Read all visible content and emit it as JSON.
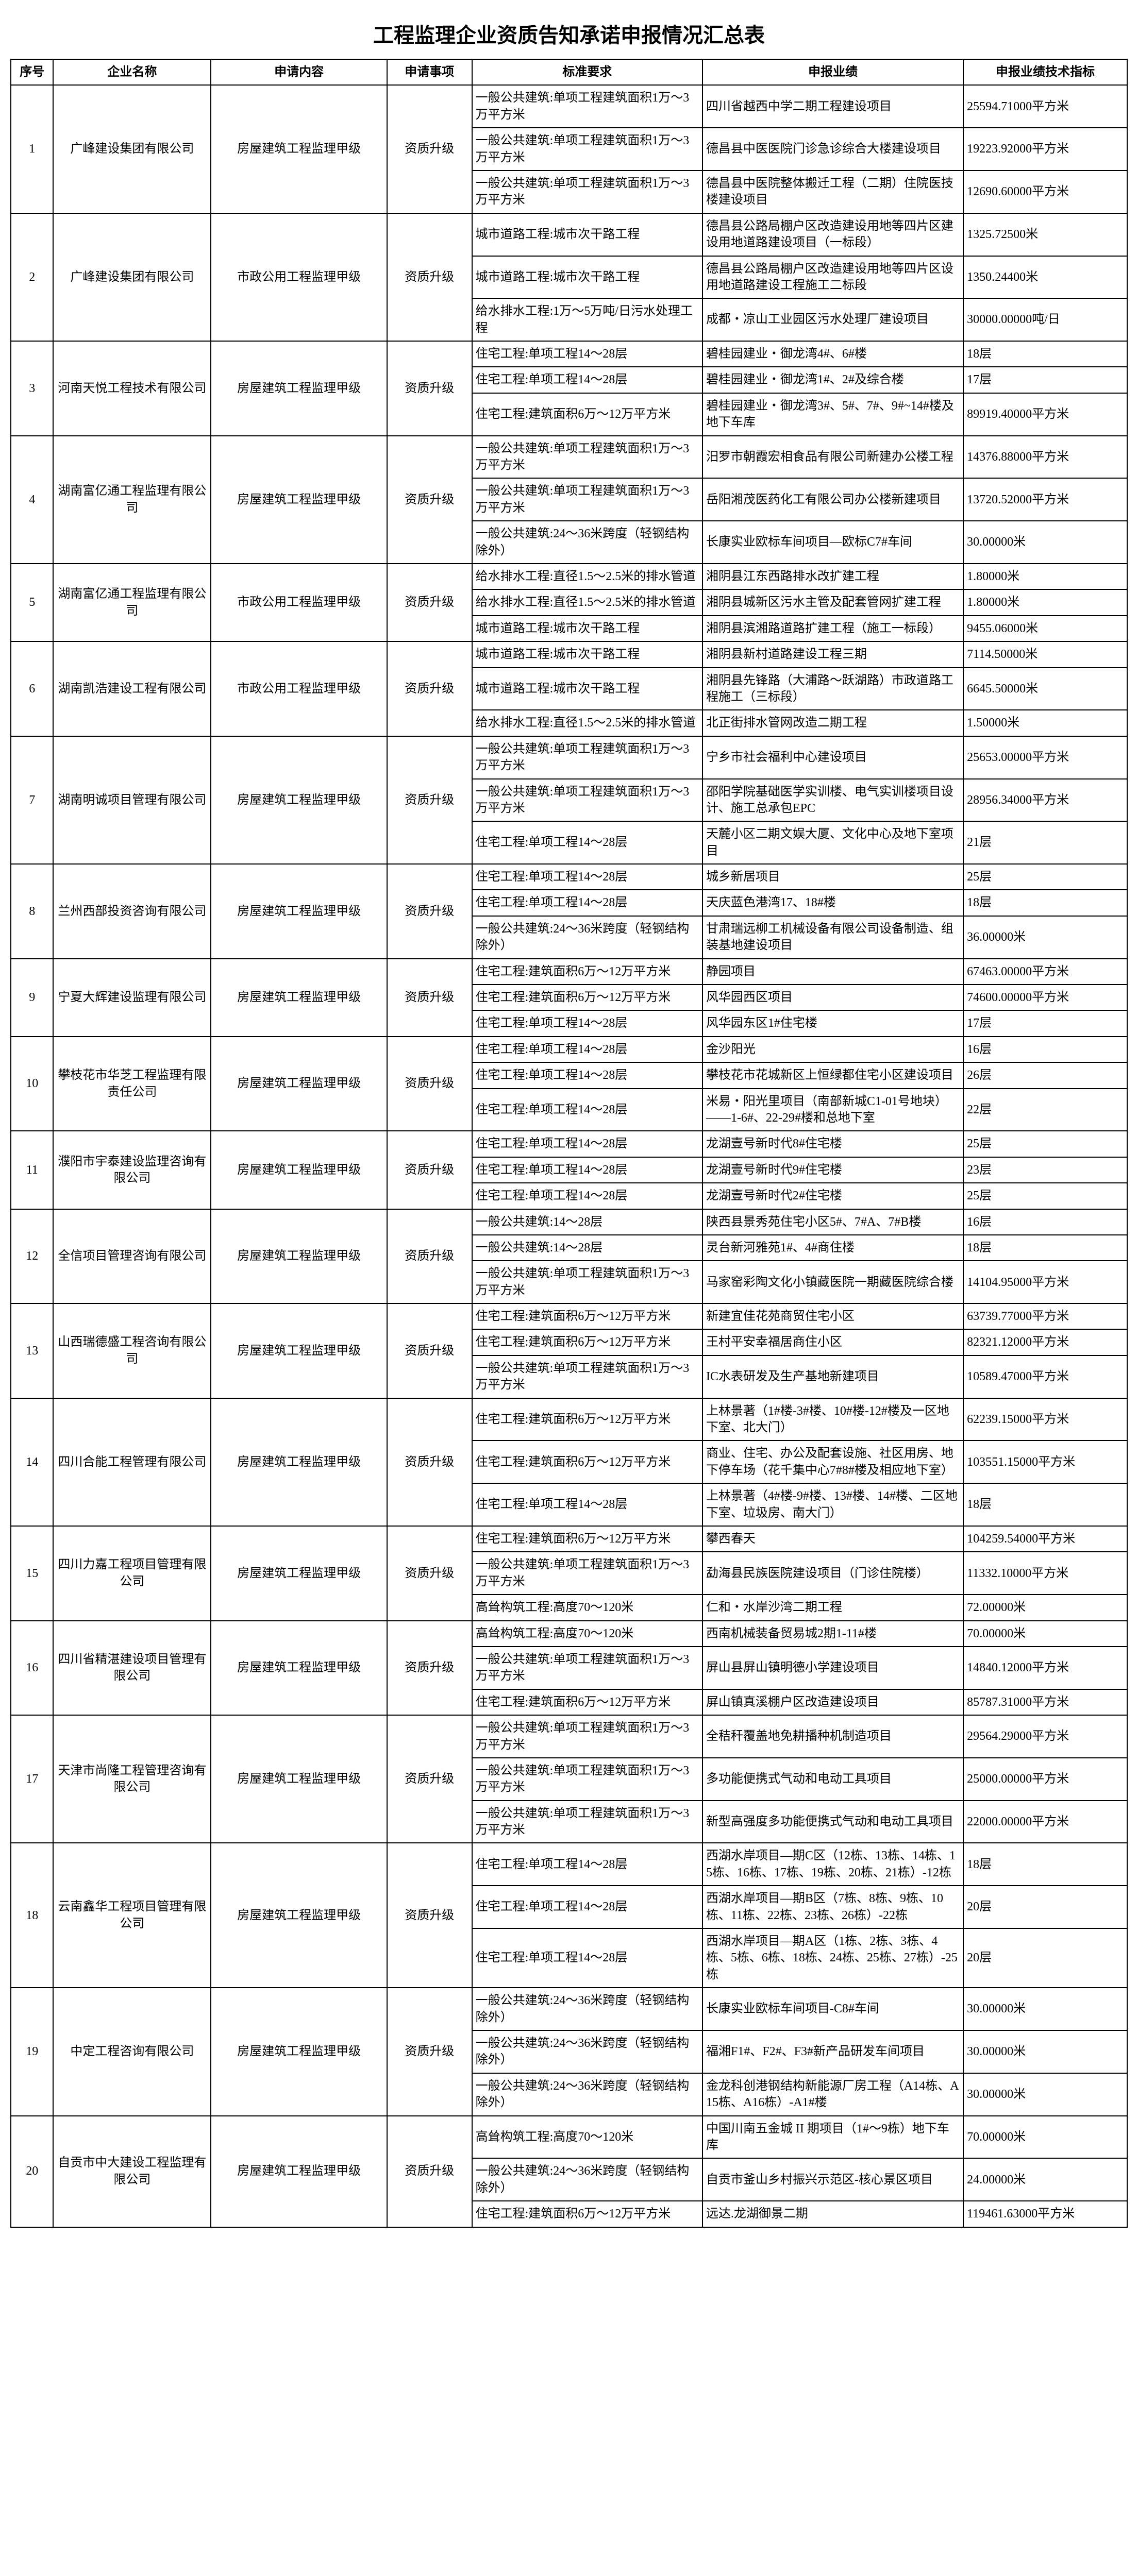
{
  "title": "工程监理企业资质告知承诺申报情况汇总表",
  "headers": {
    "seq": "序号",
    "company": "企业名称",
    "content": "申请内容",
    "item": "申请事项",
    "standard": "标准要求",
    "performance": "申报业绩",
    "tech": "申报业绩技术指标"
  },
  "rows": [
    {
      "seq": "1",
      "company": "广峰建设集团有限公司",
      "content": "房屋建筑工程监理甲级",
      "item": "资质升级",
      "entries": [
        {
          "std": "一般公共建筑:单项工程建筑面积1万～3万平方米",
          "perf": "四川省越西中学二期工程建设项目",
          "tech": "25594.71000平方米"
        },
        {
          "std": "一般公共建筑:单项工程建筑面积1万～3万平方米",
          "perf": "德昌县中医医院门诊急诊综合大楼建设项目",
          "tech": "19223.92000平方米"
        },
        {
          "std": "一般公共建筑:单项工程建筑面积1万～3万平方米",
          "perf": "德昌县中医院整体搬迁工程（二期）住院医技楼建设项目",
          "tech": "12690.60000平方米"
        }
      ]
    },
    {
      "seq": "2",
      "company": "广峰建设集团有限公司",
      "content": "市政公用工程监理甲级",
      "item": "资质升级",
      "entries": [
        {
          "std": "城市道路工程:城市次干路工程",
          "perf": "德昌县公路局棚户区改造建设用地等四片区建设用地道路建设项目（一标段）",
          "tech": "1325.72500米"
        },
        {
          "std": "城市道路工程:城市次干路工程",
          "perf": "德昌县公路局棚户区改造建设用地等四片区设用地道路建设工程施工二标段",
          "tech": "1350.24400米"
        },
        {
          "std": "给水排水工程:1万～5万吨/日污水处理工程",
          "perf": "成都・凉山工业园区污水处理厂建设项目",
          "tech": "30000.00000吨/日"
        }
      ]
    },
    {
      "seq": "3",
      "company": "河南天悦工程技术有限公司",
      "content": "房屋建筑工程监理甲级",
      "item": "资质升级",
      "entries": [
        {
          "std": "住宅工程:单项工程14～28层",
          "perf": "碧桂园建业・御龙湾4#、6#楼",
          "tech": "18层"
        },
        {
          "std": "住宅工程:单项工程14～28层",
          "perf": "碧桂园建业・御龙湾1#、2#及综合楼",
          "tech": "17层"
        },
        {
          "std": "住宅工程:建筑面积6万～12万平方米",
          "perf": "碧桂园建业・御龙湾3#、5#、7#、9#~14#楼及地下车库",
          "tech": "89919.40000平方米"
        }
      ]
    },
    {
      "seq": "4",
      "company": "湖南富亿通工程监理有限公司",
      "content": "房屋建筑工程监理甲级",
      "item": "资质升级",
      "entries": [
        {
          "std": "一般公共建筑:单项工程建筑面积1万～3万平方米",
          "perf": "汨罗市朝霞宏相食品有限公司新建办公楼工程",
          "tech": "14376.88000平方米"
        },
        {
          "std": "一般公共建筑:单项工程建筑面积1万～3万平方米",
          "perf": "岳阳湘茂医药化工有限公司办公楼新建项目",
          "tech": "13720.52000平方米"
        },
        {
          "std": "一般公共建筑:24～36米跨度（轻钢结构除外）",
          "perf": "长康实业欧标车间项目—欧标C7#车间",
          "tech": "30.00000米"
        }
      ]
    },
    {
      "seq": "5",
      "company": "湖南富亿通工程监理有限公司",
      "content": "市政公用工程监理甲级",
      "item": "资质升级",
      "entries": [
        {
          "std": "给水排水工程:直径1.5～2.5米的排水管道",
          "perf": "湘阴县江东西路排水改扩建工程",
          "tech": "1.80000米"
        },
        {
          "std": "给水排水工程:直径1.5～2.5米的排水管道",
          "perf": "湘阴县城新区污水主管及配套管网扩建工程",
          "tech": "1.80000米"
        },
        {
          "std": "城市道路工程:城市次干路工程",
          "perf": "湘阴县滨湘路道路扩建工程（施工一标段）",
          "tech": "9455.06000米"
        }
      ]
    },
    {
      "seq": "6",
      "company": "湖南凯浩建设工程有限公司",
      "content": "市政公用工程监理甲级",
      "item": "资质升级",
      "entries": [
        {
          "std": "城市道路工程:城市次干路工程",
          "perf": "湘阴县新村道路建设工程三期",
          "tech": "7114.50000米"
        },
        {
          "std": "城市道路工程:城市次干路工程",
          "perf": "湘阴县先锋路（大浦路～跃湖路）市政道路工程施工（三标段）",
          "tech": "6645.50000米"
        },
        {
          "std": "给水排水工程:直径1.5～2.5米的排水管道",
          "perf": "北正街排水管网改造二期工程",
          "tech": "1.50000米"
        }
      ]
    },
    {
      "seq": "7",
      "company": "湖南明诚项目管理有限公司",
      "content": "房屋建筑工程监理甲级",
      "item": "资质升级",
      "entries": [
        {
          "std": "一般公共建筑:单项工程建筑面积1万～3万平方米",
          "perf": "宁乡市社会福利中心建设项目",
          "tech": "25653.00000平方米"
        },
        {
          "std": "一般公共建筑:单项工程建筑面积1万～3万平方米",
          "perf": "邵阳学院基础医学实训楼、电气实训楼项目设计、施工总承包EPC",
          "tech": "28956.34000平方米"
        },
        {
          "std": "住宅工程:单项工程14～28层",
          "perf": "天麓小区二期文娱大厦、文化中心及地下室项目",
          "tech": "21层"
        }
      ]
    },
    {
      "seq": "8",
      "company": "兰州西部投资咨询有限公司",
      "content": "房屋建筑工程监理甲级",
      "item": "资质升级",
      "entries": [
        {
          "std": "住宅工程:单项工程14～28层",
          "perf": "城乡新居项目",
          "tech": "25层"
        },
        {
          "std": "住宅工程:单项工程14～28层",
          "perf": "天庆蓝色港湾17、18#楼",
          "tech": "18层"
        },
        {
          "std": "一般公共建筑:24～36米跨度（轻钢结构除外）",
          "perf": "甘肃瑞远柳工机械设备有限公司设备制造、组装基地建设项目",
          "tech": "36.00000米"
        }
      ]
    },
    {
      "seq": "9",
      "company": "宁夏大辉建设监理有限公司",
      "content": "房屋建筑工程监理甲级",
      "item": "资质升级",
      "entries": [
        {
          "std": "住宅工程:建筑面积6万～12万平方米",
          "perf": "静园项目",
          "tech": "67463.00000平方米"
        },
        {
          "std": "住宅工程:建筑面积6万～12万平方米",
          "perf": "风华园西区项目",
          "tech": "74600.00000平方米"
        },
        {
          "std": "住宅工程:单项工程14～28层",
          "perf": "风华园东区1#住宅楼",
          "tech": "17层"
        }
      ]
    },
    {
      "seq": "10",
      "company": "攀枝花市华芝工程监理有限责任公司",
      "content": "房屋建筑工程监理甲级",
      "item": "资质升级",
      "entries": [
        {
          "std": "住宅工程:单项工程14～28层",
          "perf": "金沙阳光",
          "tech": "16层"
        },
        {
          "std": "住宅工程:单项工程14～28层",
          "perf": "攀枝花市花城新区上恒绿都住宅小区建设项目",
          "tech": "26层"
        },
        {
          "std": "住宅工程:单项工程14～28层",
          "perf": "米易・阳光里项目（南部新城C1-01号地块）——1-6#、22-29#楼和总地下室",
          "tech": "22层"
        }
      ]
    },
    {
      "seq": "11",
      "company": "濮阳市宇泰建设监理咨询有限公司",
      "content": "房屋建筑工程监理甲级",
      "item": "资质升级",
      "entries": [
        {
          "std": "住宅工程:单项工程14～28层",
          "perf": "龙湖壹号新时代8#住宅楼",
          "tech": "25层"
        },
        {
          "std": "住宅工程:单项工程14～28层",
          "perf": "龙湖壹号新时代9#住宅楼",
          "tech": "23层"
        },
        {
          "std": "住宅工程:单项工程14～28层",
          "perf": "龙湖壹号新时代2#住宅楼",
          "tech": "25层"
        }
      ]
    },
    {
      "seq": "12",
      "company": "全信项目管理咨询有限公司",
      "content": "房屋建筑工程监理甲级",
      "item": "资质升级",
      "entries": [
        {
          "std": "一般公共建筑:14～28层",
          "perf": "陕西县景秀苑住宅小区5#、7#A、7#B楼",
          "tech": "16层"
        },
        {
          "std": "一般公共建筑:14～28层",
          "perf": "灵台新河雅苑1#、4#商住楼",
          "tech": "18层"
        },
        {
          "std": "一般公共建筑:单项工程建筑面积1万～3万平方米",
          "perf": "马家窑彩陶文化小镇藏医院一期藏医院综合楼",
          "tech": "14104.95000平方米"
        }
      ]
    },
    {
      "seq": "13",
      "company": "山西瑞德盛工程咨询有限公司",
      "content": "房屋建筑工程监理甲级",
      "item": "资质升级",
      "entries": [
        {
          "std": "住宅工程:建筑面积6万～12万平方米",
          "perf": "新建宜佳花苑商贸住宅小区",
          "tech": "63739.77000平方米"
        },
        {
          "std": "住宅工程:建筑面积6万～12万平方米",
          "perf": "王村平安幸福居商住小区",
          "tech": "82321.12000平方米"
        },
        {
          "std": "一般公共建筑:单项工程建筑面积1万～3万平方米",
          "perf": "IC水表研发及生产基地新建项目",
          "tech": "10589.47000平方米"
        }
      ]
    },
    {
      "seq": "14",
      "company": "四川合能工程管理有限公司",
      "content": "房屋建筑工程监理甲级",
      "item": "资质升级",
      "entries": [
        {
          "std": "住宅工程:建筑面积6万～12万平方米",
          "perf": "上林景著（1#楼-3#楼、10#楼-12#楼及一区地下室、北大门）",
          "tech": "62239.15000平方米"
        },
        {
          "std": "住宅工程:建筑面积6万～12万平方米",
          "perf": "商业、住宅、办公及配套设施、社区用房、地下停车场（花千集中心7#8#楼及相应地下室）",
          "tech": "103551.15000平方米"
        },
        {
          "std": "住宅工程:单项工程14～28层",
          "perf": "上林景著（4#楼-9#楼、13#楼、14#楼、二区地下室、垃圾房、南大门）",
          "tech": "18层"
        }
      ]
    },
    {
      "seq": "15",
      "company": "四川力嘉工程项目管理有限公司",
      "content": "房屋建筑工程监理甲级",
      "item": "资质升级",
      "entries": [
        {
          "std": "住宅工程:建筑面积6万～12万平方米",
          "perf": "攀西春天",
          "tech": "104259.54000平方米"
        },
        {
          "std": "一般公共建筑:单项工程建筑面积1万～3万平方米",
          "perf": "勐海县民族医院建设项目（门诊住院楼）",
          "tech": "11332.10000平方米"
        },
        {
          "std": "高耸构筑工程:高度70～120米",
          "perf": "仁和・水岸沙湾二期工程",
          "tech": "72.00000米"
        }
      ]
    },
    {
      "seq": "16",
      "company": "四川省精湛建设项目管理有限公司",
      "content": "房屋建筑工程监理甲级",
      "item": "资质升级",
      "entries": [
        {
          "std": "高耸构筑工程:高度70～120米",
          "perf": "西南机械装备贸易城2期1-11#楼",
          "tech": "70.00000米"
        },
        {
          "std": "一般公共建筑:单项工程建筑面积1万～3万平方米",
          "perf": "屏山县屏山镇明德小学建设项目",
          "tech": "14840.12000平方米"
        },
        {
          "std": "住宅工程:建筑面积6万～12万平方米",
          "perf": "屏山镇真溪棚户区改造建设项目",
          "tech": "85787.31000平方米"
        }
      ]
    },
    {
      "seq": "17",
      "company": "天津市尚隆工程管理咨询有限公司",
      "content": "房屋建筑工程监理甲级",
      "item": "资质升级",
      "entries": [
        {
          "std": "一般公共建筑:单项工程建筑面积1万～3万平方米",
          "perf": "全秸秆覆盖地免耕播种机制造项目",
          "tech": "29564.29000平方米"
        },
        {
          "std": "一般公共建筑:单项工程建筑面积1万～3万平方米",
          "perf": "多功能便携式气动和电动工具项目",
          "tech": "25000.00000平方米"
        },
        {
          "std": "一般公共建筑:单项工程建筑面积1万～3万平方米",
          "perf": "新型高强度多功能便携式气动和电动工具项目",
          "tech": "22000.00000平方米"
        }
      ]
    },
    {
      "seq": "18",
      "company": "云南鑫华工程项目管理有限公司",
      "content": "房屋建筑工程监理甲级",
      "item": "资质升级",
      "entries": [
        {
          "std": "住宅工程:单项工程14～28层",
          "perf": "西湖水岸项目—期C区（12栋、13栋、14栋、15栋、16栋、17栋、19栋、20栋、21栋）-12栋",
          "tech": "18层"
        },
        {
          "std": "住宅工程:单项工程14～28层",
          "perf": "西湖水岸项目—期B区（7栋、8栋、9栋、10栋、11栋、22栋、23栋、26栋）-22栋",
          "tech": "20层"
        },
        {
          "std": "住宅工程:单项工程14～28层",
          "perf": "西湖水岸项目—期A区（1栋、2栋、3栋、4栋、5栋、6栋、18栋、24栋、25栋、27栋）-25栋",
          "tech": "20层"
        }
      ]
    },
    {
      "seq": "19",
      "company": "中定工程咨询有限公司",
      "content": "房屋建筑工程监理甲级",
      "item": "资质升级",
      "entries": [
        {
          "std": "一般公共建筑:24～36米跨度（轻钢结构除外）",
          "perf": "长康实业欧标车间项目-C8#车间",
          "tech": "30.00000米"
        },
        {
          "std": "一般公共建筑:24～36米跨度（轻钢结构除外）",
          "perf": "福湘F1#、F2#、F3#新产品研发车间项目",
          "tech": "30.00000米"
        },
        {
          "std": "一般公共建筑:24～36米跨度（轻钢结构除外）",
          "perf": "金龙科创港钢结构新能源厂房工程（A14栋、A15栋、A16栋）-A1#楼",
          "tech": "30.00000米"
        }
      ]
    },
    {
      "seq": "20",
      "company": "自贡市中大建设工程监理有限公司",
      "content": "房屋建筑工程监理甲级",
      "item": "资质升级",
      "entries": [
        {
          "std": "高耸构筑工程:高度70～120米",
          "perf": "中国川南五金城 II 期项目（1#～9栋）地下车库",
          "tech": "70.00000米"
        },
        {
          "std": "一般公共建筑:24～36米跨度（轻钢结构除外）",
          "perf": "自贡市釜山乡村振兴示范区-核心景区项目",
          "tech": "24.00000米"
        },
        {
          "std": "住宅工程:建筑面积6万～12万平方米",
          "perf": "远达.龙湖御景二期",
          "tech": "119461.63000平方米"
        }
      ]
    }
  ]
}
